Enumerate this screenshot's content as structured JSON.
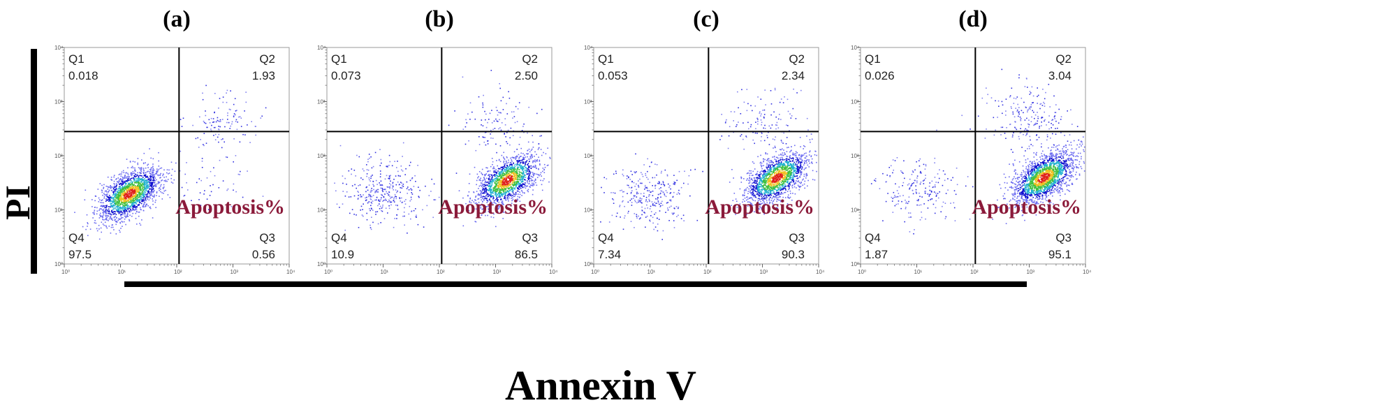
{
  "chart_data": {
    "type": "scatter",
    "description_kind": "flow cytometry dot plots",
    "xlabel": "Annexin V",
    "ylabel": "PI",
    "xscale": "log",
    "yscale": "log",
    "xlim": [
      1,
      10000
    ],
    "ylim": [
      1,
      10000
    ],
    "tick_labels": [
      "10⁰",
      "10¹",
      "10²",
      "10³",
      "10⁴"
    ],
    "gate": {
      "x": 110,
      "y": 280
    },
    "annotation": "Apoptosis%",
    "panels": [
      {
        "title": "(a)",
        "quadrants": {
          "Q1": "0.018",
          "Q2": "1.93",
          "Q3": "0.56",
          "Q4": "97.5"
        },
        "populations": [
          {
            "cx": 1.15,
            "cy": 1.3,
            "n": 1800
          },
          {
            "cx": 2.8,
            "cy": 2.55,
            "n": 120
          },
          {
            "cx": 2.6,
            "cy": 1.4,
            "n": 40
          }
        ]
      },
      {
        "title": "(b)",
        "quadrants": {
          "Q1": "0.073",
          "Q2": "2.50",
          "Q3": "86.5",
          "Q4": "10.9"
        },
        "populations": [
          {
            "cx": 3.2,
            "cy": 1.55,
            "n": 1500
          },
          {
            "cx": 1.0,
            "cy": 1.35,
            "n": 350
          },
          {
            "cx": 3.0,
            "cy": 2.6,
            "n": 120
          }
        ]
      },
      {
        "title": "(c)",
        "quadrants": {
          "Q1": "0.053",
          "Q2": "2.34",
          "Q3": "90.3",
          "Q4": "7.34"
        },
        "populations": [
          {
            "cx": 3.25,
            "cy": 1.6,
            "n": 1600
          },
          {
            "cx": 1.0,
            "cy": 1.3,
            "n": 300
          },
          {
            "cx": 3.0,
            "cy": 2.65,
            "n": 130
          }
        ]
      },
      {
        "title": "(d)",
        "quadrants": {
          "Q1": "0.026",
          "Q2": "3.04",
          "Q3": "95.1",
          "Q4": "1.87"
        },
        "populations": [
          {
            "cx": 3.25,
            "cy": 1.6,
            "n": 1900
          },
          {
            "cx": 1.0,
            "cy": 1.4,
            "n": 200
          },
          {
            "cx": 3.0,
            "cy": 2.7,
            "n": 220
          }
        ]
      }
    ]
  }
}
